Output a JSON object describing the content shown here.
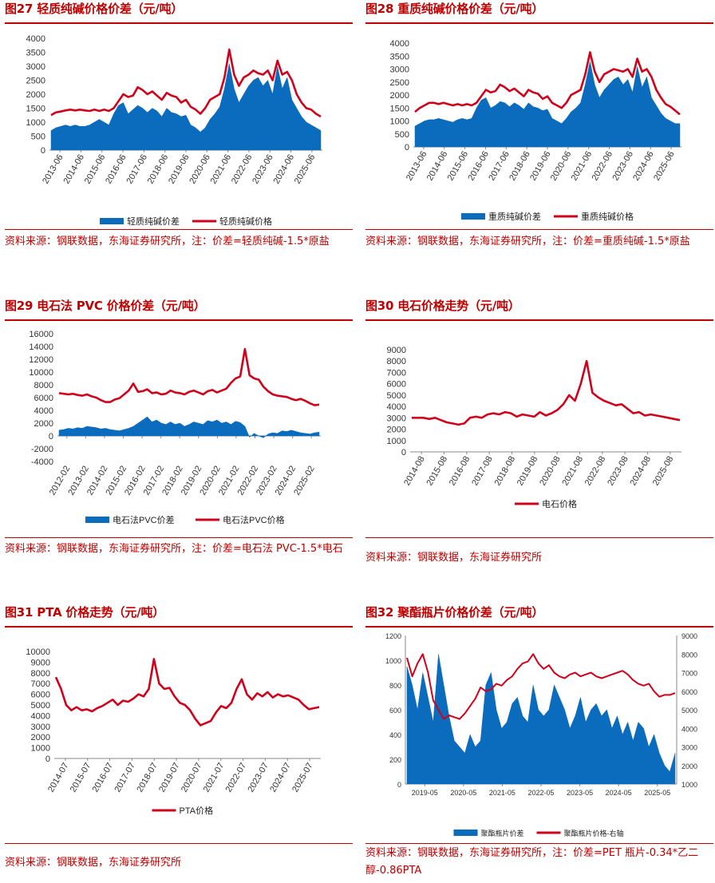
{
  "colors": {
    "red": "#d0021b",
    "blue": "#0b6bbd",
    "title": "#c00000",
    "axis": "#888888"
  },
  "chart_data": [
    {
      "id": "c27",
      "type": "area+line",
      "title": "图27  轻质纯碱价格价差（元/吨）",
      "yticks": [
        "4000",
        "3500",
        "3000",
        "2500",
        "2000",
        "1500",
        "1000",
        "500",
        "0"
      ],
      "ylim": [
        0,
        4000
      ],
      "xticks": [
        "2013-06",
        "2014-06",
        "2015-06",
        "2016-06",
        "2017-06",
        "2018-06",
        "2019-06",
        "2020-06",
        "2021-06",
        "2022-06",
        "2023-06",
        "2024-06",
        "2025-06"
      ],
      "series": [
        {
          "name": "轻质纯碱价差",
          "kind": "area",
          "values": [
            700,
            800,
            850,
            900,
            850,
            900,
            850,
            850,
            900,
            1000,
            1100,
            1000,
            900,
            1300,
            1600,
            1700,
            1300,
            1450,
            1600,
            1500,
            1350,
            1500,
            1400,
            1200,
            1500,
            1350,
            1300,
            1200,
            1250,
            900,
            800,
            650,
            800,
            1100,
            1300,
            1550,
            2200,
            3100,
            2200,
            1700,
            2000,
            2300,
            2500,
            2600,
            2300,
            2500,
            2000,
            3000,
            2200,
            2600,
            1800,
            1500,
            1200,
            1000,
            900,
            800,
            700
          ]
        },
        {
          "name": "轻质纯碱价格",
          "kind": "line",
          "values": [
            1250,
            1350,
            1380,
            1420,
            1450,
            1420,
            1450,
            1420,
            1400,
            1450,
            1400,
            1450,
            1400,
            1500,
            1750,
            2000,
            1900,
            1950,
            2250,
            2150,
            2000,
            2100,
            1950,
            1800,
            2050,
            1950,
            1900,
            1700,
            1800,
            1550,
            1450,
            1300,
            1500,
            1800,
            1900,
            2000,
            2600,
            3600,
            2700,
            2300,
            2600,
            2700,
            2850,
            2750,
            2700,
            2850,
            2500,
            3200,
            2700,
            2800,
            2500,
            2000,
            1700,
            1500,
            1450,
            1300,
            1200
          ]
        }
      ],
      "legend": [
        "轻质纯碱价差",
        "轻质纯碱价格"
      ],
      "source": "资料来源：钢联数据，东海证券研究所，注：价差=轻质纯碱-1.5*原盐"
    },
    {
      "id": "c28",
      "type": "area+line",
      "title": "图28  重质纯碱价格价差（元/吨）",
      "yticks": [
        "4000",
        "3500",
        "3000",
        "2500",
        "2000",
        "1500",
        "1000",
        "500",
        "0"
      ],
      "ylim": [
        0,
        4000
      ],
      "xticks": [
        "2013-06",
        "2014-06",
        "2015-06",
        "2016-06",
        "2017-06",
        "2018-06",
        "2019-06",
        "2020-06",
        "2021-06",
        "2022-06",
        "2023-06",
        "2024-06",
        "2025-06"
      ],
      "series": [
        {
          "name": "重质纯碱价差",
          "kind": "area",
          "values": [
            800,
            900,
            1000,
            1050,
            1050,
            1100,
            1050,
            1000,
            950,
            1050,
            1100,
            1050,
            1100,
            1500,
            1800,
            1900,
            1500,
            1600,
            1750,
            1700,
            1550,
            1700,
            1600,
            1450,
            1700,
            1550,
            1500,
            1400,
            1450,
            1100,
            1000,
            900,
            1100,
            1350,
            1500,
            1700,
            2400,
            3300,
            2400,
            1900,
            2200,
            2400,
            2600,
            2700,
            2400,
            2600,
            2100,
            3100,
            2300,
            2700,
            1900,
            1600,
            1300,
            1100,
            1000,
            900,
            900
          ]
        },
        {
          "name": "重质纯碱价格",
          "kind": "line",
          "values": [
            1350,
            1500,
            1600,
            1700,
            1700,
            1650,
            1700,
            1650,
            1600,
            1650,
            1600,
            1650,
            1600,
            1700,
            1950,
            2200,
            2100,
            2150,
            2400,
            2300,
            2150,
            2250,
            2100,
            1950,
            2200,
            2100,
            2050,
            1850,
            1950,
            1700,
            1600,
            1500,
            1700,
            2000,
            2100,
            2200,
            2800,
            3650,
            2900,
            2500,
            2800,
            2900,
            3000,
            2950,
            2900,
            3000,
            2700,
            3400,
            2900,
            3000,
            2700,
            2200,
            1900,
            1650,
            1550,
            1400,
            1250
          ]
        }
      ],
      "legend": [
        "重质纯碱价差",
        "重质纯碱价格"
      ],
      "source": "资料来源：钢联数据，东海证券研究所，注：价差=重质纯碱-1.5*原盐"
    },
    {
      "id": "c29",
      "type": "area+line",
      "title": "图29  电石法 PVC 价格价差（元/吨）",
      "yticks": [
        "16000",
        "14000",
        "12000",
        "10000",
        "8000",
        "6000",
        "4000",
        "2000",
        "0",
        "-2000",
        "-4000"
      ],
      "ylim": [
        -4000,
        16000
      ],
      "xticks": [
        "2012-02",
        "2013-02",
        "2014-02",
        "2015-02",
        "2016-02",
        "2017-02",
        "2018-02",
        "2019-02",
        "2020-02",
        "2021-02",
        "2022-02",
        "2023-02",
        "2024-02",
        "2025-02"
      ],
      "series": [
        {
          "name": "电石法PVC价差",
          "kind": "area",
          "values": [
            900,
            1000,
            1200,
            1100,
            1300,
            1200,
            1500,
            1400,
            1300,
            1100,
            1200,
            1000,
            900,
            800,
            1000,
            1200,
            1500,
            2000,
            2500,
            3000,
            2200,
            2500,
            2000,
            1800,
            2200,
            1800,
            2000,
            1500,
            1800,
            2200,
            2000,
            1800,
            2400,
            2200,
            2500,
            2000,
            2200,
            1800,
            2300,
            2100,
            1500,
            -200,
            400,
            0,
            -300,
            300,
            500,
            400,
            800,
            700,
            900,
            700,
            500,
            400,
            300,
            500,
            600
          ]
        },
        {
          "name": "电石法PVC价格",
          "kind": "line",
          "values": [
            6700,
            6600,
            6500,
            6600,
            6400,
            6300,
            6500,
            6200,
            6000,
            5600,
            5300,
            5300,
            5700,
            5900,
            6500,
            7100,
            8200,
            6900,
            7000,
            7300,
            6700,
            6800,
            6500,
            6600,
            7100,
            6800,
            6700,
            6500,
            6900,
            7100,
            6800,
            6500,
            7000,
            7200,
            6800,
            7100,
            7400,
            8300,
            9000,
            9300,
            13600,
            9500,
            9000,
            8800,
            7700,
            7000,
            6500,
            6300,
            6200,
            6100,
            5800,
            5600,
            5800,
            5500,
            5100,
            4800,
            4900
          ]
        }
      ],
      "legend": [
        "电石法PVC价差",
        "电石法PVC价格"
      ],
      "source": "资料来源：钢联数据，东海证券研究所，注：价差=电石法 PVC-1.5*电石"
    },
    {
      "id": "c30",
      "type": "line",
      "title": "图30  电石价格走势（元/吨）",
      "yticks": [
        "9000",
        "8000",
        "7000",
        "6000",
        "5000",
        "4000",
        "3000",
        "2000",
        "1000",
        "0"
      ],
      "ylim": [
        0,
        9000
      ],
      "xticks": [
        "2014-08",
        "2015-08",
        "2016-08",
        "2017-08",
        "2018-08",
        "2019-08",
        "2020-08",
        "2021-08",
        "2022-08",
        "2023-08",
        "2024-08",
        "2025-08"
      ],
      "series": [
        {
          "name": "电石价格",
          "kind": "line",
          "values": [
            3000,
            3000,
            3000,
            2900,
            3000,
            2800,
            2600,
            2500,
            2400,
            2500,
            3000,
            3100,
            3000,
            3300,
            3400,
            3300,
            3500,
            3400,
            3100,
            3300,
            3200,
            3100,
            3500,
            3200,
            3400,
            3700,
            4200,
            5000,
            4500,
            6000,
            8000,
            5200,
            4800,
            4500,
            4300,
            4100,
            4200,
            3800,
            3400,
            3500,
            3200,
            3300,
            3200,
            3100,
            3000,
            2900,
            2800
          ]
        }
      ],
      "legend": [
        "电石价格"
      ],
      "source": "资料来源：钢联数据，东海证券研究所"
    },
    {
      "id": "c31",
      "type": "line",
      "title": "图31  PTA 价格走势（元/吨）",
      "yticks": [
        "10000",
        "9000",
        "8000",
        "7000",
        "6000",
        "5000",
        "4000",
        "3000",
        "2000",
        "1000",
        "0"
      ],
      "ylim": [
        0,
        10000
      ],
      "xticks": [
        "2014-07",
        "2015-07",
        "2016-07",
        "2017-07",
        "2018-07",
        "2019-07",
        "2020-07",
        "2021-07",
        "2022-07",
        "2023-07",
        "2024-07",
        "2025-07"
      ],
      "series": [
        {
          "name": "PTA价格",
          "kind": "line",
          "values": [
            7600,
            6500,
            5000,
            4500,
            4800,
            4500,
            4600,
            4400,
            4700,
            4900,
            5200,
            5500,
            5000,
            5400,
            5300,
            5600,
            6000,
            5800,
            6500,
            9300,
            7000,
            6500,
            6600,
            5800,
            5200,
            5000,
            4500,
            3700,
            3100,
            3300,
            3500,
            4300,
            4900,
            4700,
            5200,
            6500,
            7400,
            6000,
            5500,
            6100,
            5800,
            6200,
            5700,
            6000,
            5800,
            5900,
            5700,
            5500,
            5000,
            4600,
            4700,
            4800
          ]
        }
      ],
      "legend": [
        "PTA价格"
      ],
      "source": "资料来源：钢联数据，东海证券研究所"
    },
    {
      "id": "c32",
      "type": "area+line",
      "title": "图32  聚酯瓶片价格价差（元/吨）",
      "yticks": [
        "1200",
        "1000",
        "800",
        "600",
        "400",
        "200",
        "0"
      ],
      "ylim": [
        0,
        1200
      ],
      "y2ticks": [
        "9000",
        "8000",
        "7000",
        "6000",
        "5000",
        "4000",
        "3000",
        "2000",
        "1000"
      ],
      "y2lim": [
        1000,
        9000
      ],
      "xticks": [
        "2019-05",
        "2020-05",
        "2021-05",
        "2022-05",
        "2023-05",
        "2024-05",
        "2025-05"
      ],
      "series": [
        {
          "name": "聚酯瓶片价差",
          "kind": "area",
          "values": [
            950,
            800,
            600,
            900,
            700,
            500,
            1050,
            800,
            550,
            350,
            300,
            250,
            400,
            300,
            350,
            800,
            900,
            600,
            450,
            500,
            650,
            700,
            550,
            500,
            800,
            600,
            550,
            600,
            800,
            700,
            600,
            450,
            550,
            700,
            500,
            600,
            650,
            550,
            600,
            450,
            550,
            400,
            500,
            350,
            500,
            450,
            300,
            400,
            250,
            150,
            100,
            250
          ]
        },
        {
          "name": "聚酯瓶片价格-右轴",
          "kind": "line",
          "axis": "right",
          "values": [
            7800,
            6800,
            7500,
            8000,
            7000,
            5500,
            5000,
            4500,
            4700,
            4600,
            4500,
            4800,
            5200,
            5600,
            6200,
            6000,
            6100,
            6400,
            6300,
            6600,
            6800,
            7200,
            7500,
            7600,
            8000,
            7500,
            7200,
            7400,
            7000,
            6800,
            6700,
            6900,
            7000,
            6800,
            6900,
            7000,
            6800,
            6700,
            6800,
            6900,
            7000,
            7100,
            6900,
            6600,
            6400,
            6300,
            6400,
            6000,
            5700,
            5800,
            5800,
            5900
          ]
        }
      ],
      "legend": [
        "聚酯瓶片价差",
        "聚酯瓶片价格-右轴"
      ],
      "source": "资料来源：钢联数据，东海证券研究所，注：价差=PET 瓶片-0.34*乙二醇-0.86PTA"
    }
  ]
}
